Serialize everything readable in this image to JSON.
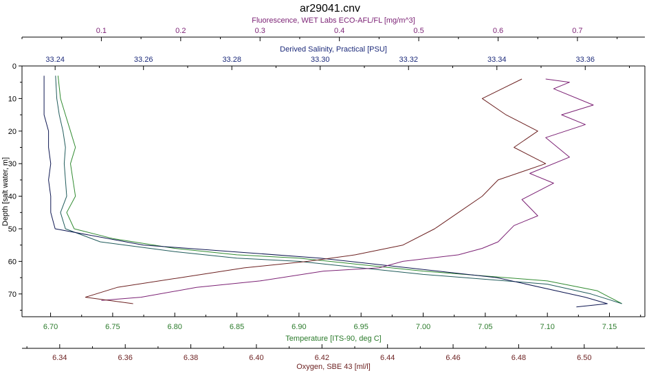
{
  "chart_data": {
    "type": "line",
    "title": "ar29041.cnv",
    "y_axis": {
      "label": "Depth [salt water, m]",
      "range": [
        0,
        77
      ],
      "ticks": [
        0,
        10,
        20,
        30,
        40,
        50,
        60,
        70
      ],
      "inverted": true
    },
    "x_axes": [
      {
        "id": "fluorescence",
        "position": "top-outer",
        "label": "Fluorescence, WET Labs ECO-AFL/FL [mg/m^3]",
        "color": "#7a1f73",
        "range": [
          0.0,
          0.785
        ],
        "ticks": [
          0.1,
          0.2,
          0.3,
          0.4,
          0.5,
          0.6,
          0.7
        ],
        "tick_labels": [
          "0.1",
          "0.2",
          "0.3",
          "0.4",
          "0.5",
          "0.6",
          "0.7"
        ]
      },
      {
        "id": "salinity",
        "position": "top-inner",
        "label": "Derived Salinity, Practical [PSU]",
        "color": "#1c2a7a",
        "range": [
          33.2325,
          33.3735
        ],
        "ticks": [
          33.24,
          33.26,
          33.28,
          33.3,
          33.32,
          33.34,
          33.36
        ],
        "tick_labels": [
          "33.24",
          "33.26",
          "33.28",
          "33.30",
          "33.32",
          "33.34",
          "33.36"
        ]
      },
      {
        "id": "temperature",
        "position": "bottom-inner",
        "label": "Temperature [ITS-90, deg C]",
        "color": "#2a7a2a",
        "range": [
          6.677,
          7.1785
        ],
        "ticks": [
          6.7,
          6.75,
          6.8,
          6.85,
          6.9,
          6.95,
          7.0,
          7.05,
          7.1,
          7.15
        ],
        "tick_labels": [
          "6.70",
          "6.75",
          "6.80",
          "6.85",
          "6.90",
          "6.95",
          "7.00",
          "7.05",
          "7.10",
          "7.15"
        ]
      },
      {
        "id": "oxygen",
        "position": "bottom-outer",
        "label": "Oxygen, SBE 43 [ml/l]",
        "color": "#6b1f1f",
        "range": [
          6.3285,
          6.5185
        ],
        "ticks": [
          6.34,
          6.36,
          6.38,
          6.4,
          6.42,
          6.44,
          6.46,
          6.48,
          6.5
        ],
        "tick_labels": [
          "6.34",
          "6.36",
          "6.38",
          "6.40",
          "6.42",
          "6.44",
          "6.46",
          "6.48",
          "6.50"
        ]
      }
    ],
    "grid": false,
    "series": [
      {
        "axis": "temperature",
        "color": "#2f8a2f",
        "points": [
          [
            6.706,
            3
          ],
          [
            6.708,
            10
          ],
          [
            6.712,
            15
          ],
          [
            6.716,
            20
          ],
          [
            6.72,
            25
          ],
          [
            6.716,
            30
          ],
          [
            6.718,
            35
          ],
          [
            6.72,
            40
          ],
          [
            6.713,
            45
          ],
          [
            6.719,
            50
          ],
          [
            6.75,
            53
          ],
          [
            6.8,
            56
          ],
          [
            6.85,
            58
          ],
          [
            6.9,
            59
          ],
          [
            6.95,
            61
          ],
          [
            7.0,
            63
          ],
          [
            7.05,
            64.5
          ],
          [
            7.1,
            66
          ],
          [
            7.14,
            69
          ],
          [
            7.16,
            73
          ]
        ]
      },
      {
        "axis": "temperature",
        "color": "#1f5a5a",
        "points": [
          [
            6.704,
            3
          ],
          [
            6.705,
            10
          ],
          [
            6.707,
            15
          ],
          [
            6.71,
            20
          ],
          [
            6.712,
            25
          ],
          [
            6.711,
            30
          ],
          [
            6.712,
            35
          ],
          [
            6.713,
            40
          ],
          [
            6.708,
            45
          ],
          [
            6.712,
            50
          ],
          [
            6.74,
            54
          ],
          [
            6.8,
            57
          ],
          [
            6.85,
            59
          ],
          [
            6.9,
            60
          ],
          [
            6.95,
            62
          ],
          [
            7.0,
            64
          ],
          [
            7.05,
            65.5
          ],
          [
            7.1,
            67
          ],
          [
            7.135,
            70
          ],
          [
            7.16,
            73
          ]
        ]
      },
      {
        "axis": "salinity",
        "color": "#0c1550",
        "points": [
          [
            33.2375,
            3
          ],
          [
            33.2375,
            10
          ],
          [
            33.2375,
            15
          ],
          [
            33.2385,
            20
          ],
          [
            33.2385,
            25
          ],
          [
            33.239,
            30
          ],
          [
            33.2385,
            35
          ],
          [
            33.239,
            40
          ],
          [
            33.239,
            45
          ],
          [
            33.24,
            50
          ],
          [
            33.26,
            55
          ],
          [
            33.28,
            57
          ],
          [
            33.3,
            59
          ],
          [
            33.32,
            62
          ],
          [
            33.34,
            65
          ],
          [
            33.36,
            71
          ],
          [
            33.365,
            73
          ],
          [
            33.358,
            74
          ]
        ]
      },
      {
        "axis": "fluorescence",
        "color": "#7a1f73",
        "points": [
          [
            0.66,
            4
          ],
          [
            0.69,
            5
          ],
          [
            0.67,
            7
          ],
          [
            0.72,
            12
          ],
          [
            0.68,
            15
          ],
          [
            0.71,
            18
          ],
          [
            0.66,
            22
          ],
          [
            0.69,
            28
          ],
          [
            0.64,
            33
          ],
          [
            0.67,
            36
          ],
          [
            0.63,
            41
          ],
          [
            0.65,
            46
          ],
          [
            0.62,
            49
          ],
          [
            0.6,
            54
          ],
          [
            0.58,
            56
          ],
          [
            0.55,
            58
          ],
          [
            0.48,
            60
          ],
          [
            0.45,
            62
          ],
          [
            0.38,
            63
          ],
          [
            0.3,
            66
          ],
          [
            0.22,
            68
          ],
          [
            0.15,
            71
          ],
          [
            0.1,
            72
          ]
        ]
      },
      {
        "axis": "fluorescence",
        "color": "#6b1f1f",
        "points": [
          [
            0.63,
            4
          ],
          [
            0.58,
            10
          ],
          [
            0.61,
            15
          ],
          [
            0.65,
            20
          ],
          [
            0.62,
            25
          ],
          [
            0.66,
            30
          ],
          [
            0.6,
            35
          ],
          [
            0.58,
            40
          ],
          [
            0.55,
            45
          ],
          [
            0.52,
            50
          ],
          [
            0.48,
            55
          ],
          [
            0.42,
            58
          ],
          [
            0.36,
            60
          ],
          [
            0.28,
            62
          ],
          [
            0.2,
            65
          ],
          [
            0.12,
            68
          ],
          [
            0.08,
            71
          ],
          [
            0.14,
            73
          ]
        ]
      }
    ]
  }
}
